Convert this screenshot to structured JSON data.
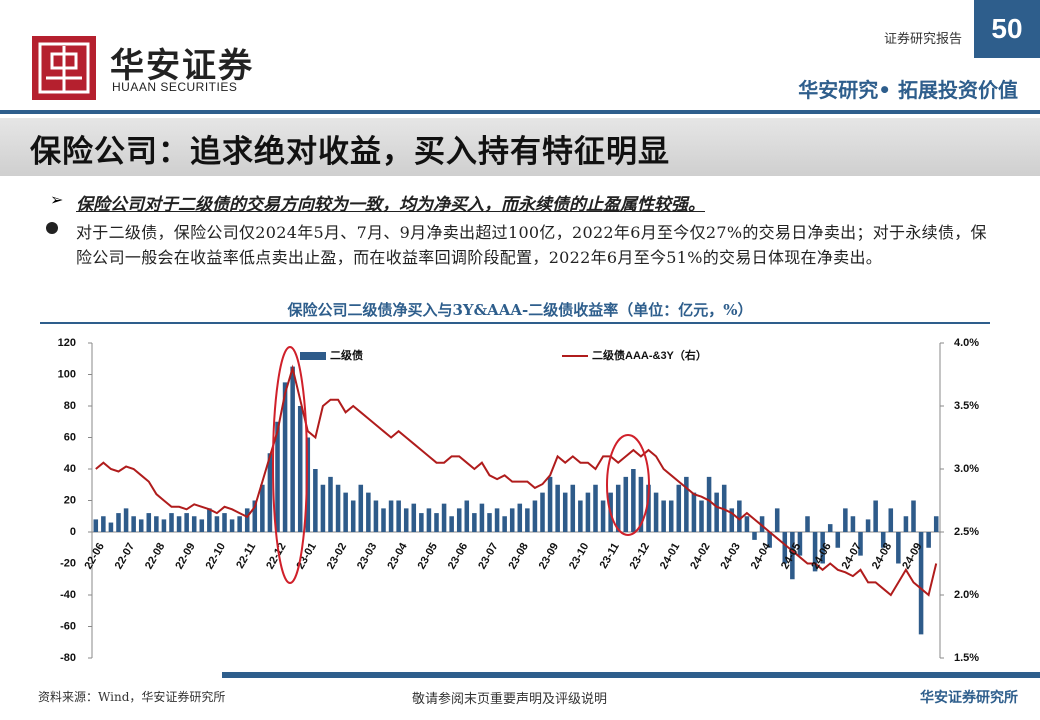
{
  "header": {
    "report_type": "证券研究报告",
    "page_number": "50",
    "logo_cn": "华安证券",
    "logo_en": "HUAAN SECURITIES",
    "slogan": "华安研究• 拓展投资价值"
  },
  "title": "保险公司：追求绝对收益，买入持有特征明显",
  "bullets": [
    "保险公司对于二级债的交易方向较为一致，均为净买入，而永续债的止盈属性较强。",
    "对于二级债，保险公司仅2024年5月、7月、9月净卖出超过100亿，2022年6月至今仅27%的交易日净卖出；对于永续债，保险公司一般会在收益率低点卖出止盈，而在收益率回调阶段配置，2022年6月至今51%的交易日体现在净卖出。"
  ],
  "chart_data": {
    "type": "bar_line",
    "title": "保险公司二级债净买入与3Y&AAA-二级债收益率（单位：亿元，%）",
    "categories": [
      "22-06",
      null,
      null,
      null,
      "22-07",
      null,
      null,
      null,
      "22-08",
      null,
      null,
      null,
      "22-09",
      null,
      null,
      null,
      "22-10",
      null,
      null,
      null,
      "22-11",
      null,
      null,
      null,
      "22-12",
      null,
      null,
      null,
      "23-01",
      null,
      null,
      null,
      "23-02",
      null,
      null,
      null,
      "23-03",
      null,
      null,
      null,
      "23-04",
      null,
      null,
      null,
      "23-05",
      null,
      null,
      null,
      "23-06",
      null,
      null,
      null,
      "23-07",
      null,
      null,
      null,
      "23-08",
      null,
      null,
      null,
      "23-09",
      null,
      null,
      null,
      "23-10",
      null,
      null,
      null,
      "23-11",
      null,
      null,
      null,
      "23-12",
      null,
      null,
      null,
      "24-01",
      null,
      null,
      null,
      "24-02",
      null,
      null,
      null,
      "24-03",
      null,
      null,
      null,
      "24-04",
      null,
      null,
      null,
      "24-05",
      null,
      null,
      null,
      "24-06",
      null,
      null,
      null,
      "24-07",
      null,
      null,
      null,
      "24-08",
      null,
      null,
      null,
      "24-09",
      null,
      null,
      null
    ],
    "series": [
      {
        "name": "二级债",
        "type": "bar",
        "color": "#2e5b8a",
        "values": [
          8,
          10,
          6,
          12,
          15,
          10,
          8,
          12,
          10,
          8,
          12,
          10,
          12,
          10,
          8,
          15,
          10,
          12,
          8,
          10,
          15,
          20,
          30,
          50,
          70,
          95,
          105,
          80,
          60,
          40,
          30,
          35,
          30,
          25,
          20,
          30,
          25,
          20,
          15,
          20,
          20,
          15,
          18,
          12,
          15,
          12,
          18,
          10,
          15,
          20,
          12,
          18,
          12,
          15,
          10,
          15,
          18,
          15,
          20,
          25,
          35,
          30,
          25,
          30,
          20,
          25,
          30,
          20,
          25,
          30,
          35,
          40,
          35,
          30,
          25,
          20,
          20,
          30,
          35,
          25,
          20,
          35,
          25,
          30,
          15,
          20,
          10,
          -5,
          10,
          -10,
          15,
          -20,
          -30,
          -15,
          10,
          -25,
          -20,
          5,
          -10,
          15,
          10,
          -15,
          8,
          20,
          -10,
          15,
          -20,
          10,
          20,
          -65,
          -10,
          10
        ]
      },
      {
        "name": "二级债AAA-&3Y（右）",
        "type": "line",
        "axis": "y2",
        "color": "#b01c1c",
        "values": [
          3.0,
          3.05,
          3.0,
          2.98,
          3.02,
          3.0,
          2.95,
          2.9,
          2.8,
          2.75,
          2.7,
          2.7,
          2.68,
          2.72,
          2.7,
          2.68,
          2.65,
          2.7,
          2.68,
          2.65,
          2.62,
          2.7,
          2.9,
          3.1,
          3.3,
          3.6,
          3.8,
          3.55,
          3.3,
          3.25,
          3.5,
          3.55,
          3.55,
          3.45,
          3.5,
          3.45,
          3.4,
          3.35,
          3.3,
          3.25,
          3.3,
          3.25,
          3.2,
          3.15,
          3.1,
          3.05,
          3.05,
          3.1,
          3.1,
          3.05,
          3.0,
          3.05,
          2.95,
          2.92,
          2.95,
          2.9,
          2.9,
          2.9,
          2.85,
          2.88,
          2.95,
          3.1,
          3.05,
          3.1,
          3.05,
          3.05,
          3.0,
          3.1,
          3.1,
          3.05,
          3.1,
          3.15,
          3.1,
          3.15,
          3.1,
          3.0,
          2.95,
          2.9,
          2.85,
          2.8,
          2.78,
          2.75,
          2.7,
          2.68,
          2.65,
          2.6,
          2.65,
          2.6,
          2.55,
          2.5,
          2.45,
          2.4,
          2.35,
          2.3,
          2.25,
          2.25,
          2.2,
          2.25,
          2.2,
          2.18,
          2.15,
          2.2,
          2.1,
          2.1,
          2.05,
          2.0,
          2.1,
          2.2,
          2.1,
          2.05,
          2.0,
          2.25
        ]
      }
    ],
    "ylim": [
      -80,
      120
    ],
    "yticks": [
      -80,
      -60,
      -40,
      -20,
      0,
      20,
      40,
      60,
      80,
      100,
      120
    ],
    "y2lim": [
      1.5,
      4.0
    ],
    "y2ticks": [
      {
        "value": 1.5,
        "label": "1.5%"
      },
      {
        "value": 2.0,
        "label": "2.0%"
      },
      {
        "value": 2.5,
        "label": "2.5%"
      },
      {
        "value": 3.0,
        "label": "3.0%"
      },
      {
        "value": 3.5,
        "label": "3.5%"
      },
      {
        "value": 4.0,
        "label": "4.0%"
      }
    ],
    "legend": "top",
    "grid": false,
    "source": "资料来源：Wind，华安证券研究所"
  },
  "footer": {
    "disclaimer": "敬请参阅末页重要声明及评级说明",
    "firm": "华安证券研究所"
  }
}
